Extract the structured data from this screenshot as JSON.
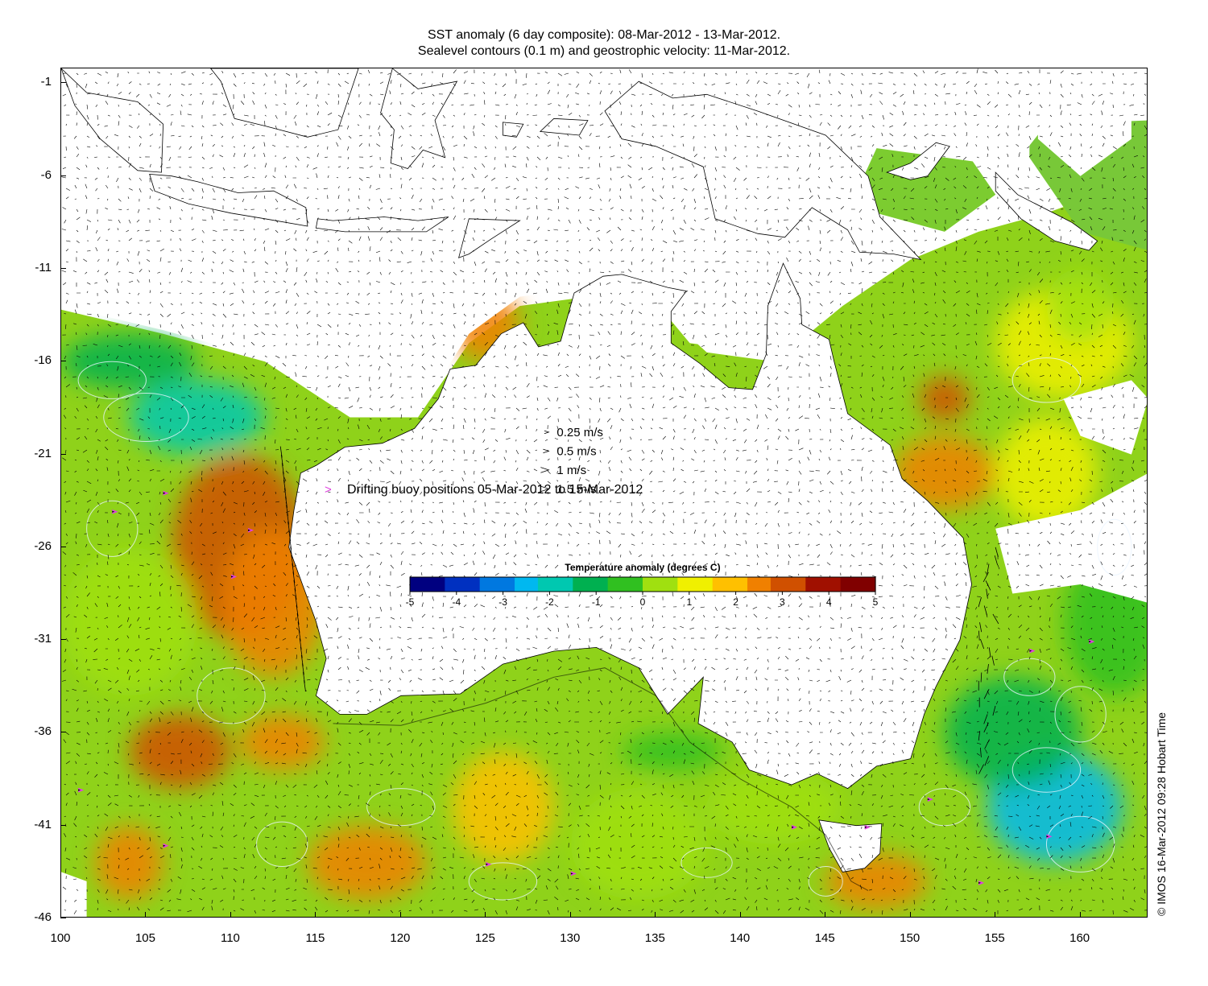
{
  "title": {
    "line1": "SST anomaly (6 day composite): 08-Mar-2012 - 13-Mar-2012.",
    "line2": "Sealevel contours (0.1 m) and geostrophic velocity: 11-Mar-2012."
  },
  "axes": {
    "x_ticks": [
      "100",
      "105",
      "110",
      "115",
      "120",
      "125",
      "130",
      "135",
      "140",
      "145",
      "150",
      "155",
      "160"
    ],
    "y_ticks": [
      "-1",
      "-6",
      "-11",
      "-16",
      "-21",
      "-26",
      "-31",
      "-36",
      "-41",
      "-46"
    ],
    "x_range": [
      100,
      164
    ],
    "y_range": [
      -46,
      -0.2
    ]
  },
  "velocity_legend": [
    {
      "label": "0.25 m/s",
      "speed": 0.25
    },
    {
      "label": "0.5 m/s",
      "speed": 0.5
    },
    {
      "label": "1 m/s",
      "speed": 1
    },
    {
      "label": "1.5 m/s",
      "speed": 1.5
    }
  ],
  "buoy_legend": {
    "symbol": ">",
    "label": "Drifting buoy positions 05-Mar-2012 to 15-Mar-2012",
    "color": "#e040e0"
  },
  "colorbar": {
    "title": "Temperature anomaly (degrees C)",
    "ticks": [
      "-5",
      "-4",
      "-3",
      "-2",
      "-1",
      "0",
      "1",
      "2",
      "3",
      "4",
      "5"
    ],
    "range": [
      -5,
      5
    ],
    "colors": [
      "#000080",
      "#0030c0",
      "#0078e0",
      "#00b8f0",
      "#00c8b0",
      "#00b050",
      "#30c020",
      "#a0e010",
      "#f0f000",
      "#ffc000",
      "#f08000",
      "#d05000",
      "#a01000",
      "#800000"
    ]
  },
  "credit": "© IMOS 16-Mar-2012 09:28 Hobart Time",
  "map_colors": {
    "land": "#ffffff",
    "coast": "#000000",
    "ocean_mean": "#8fd21a",
    "warm_anomaly": "#f0a000",
    "cool_anomaly": "#20c090",
    "contour": "#e8f4ff",
    "arrow": "#000000"
  }
}
